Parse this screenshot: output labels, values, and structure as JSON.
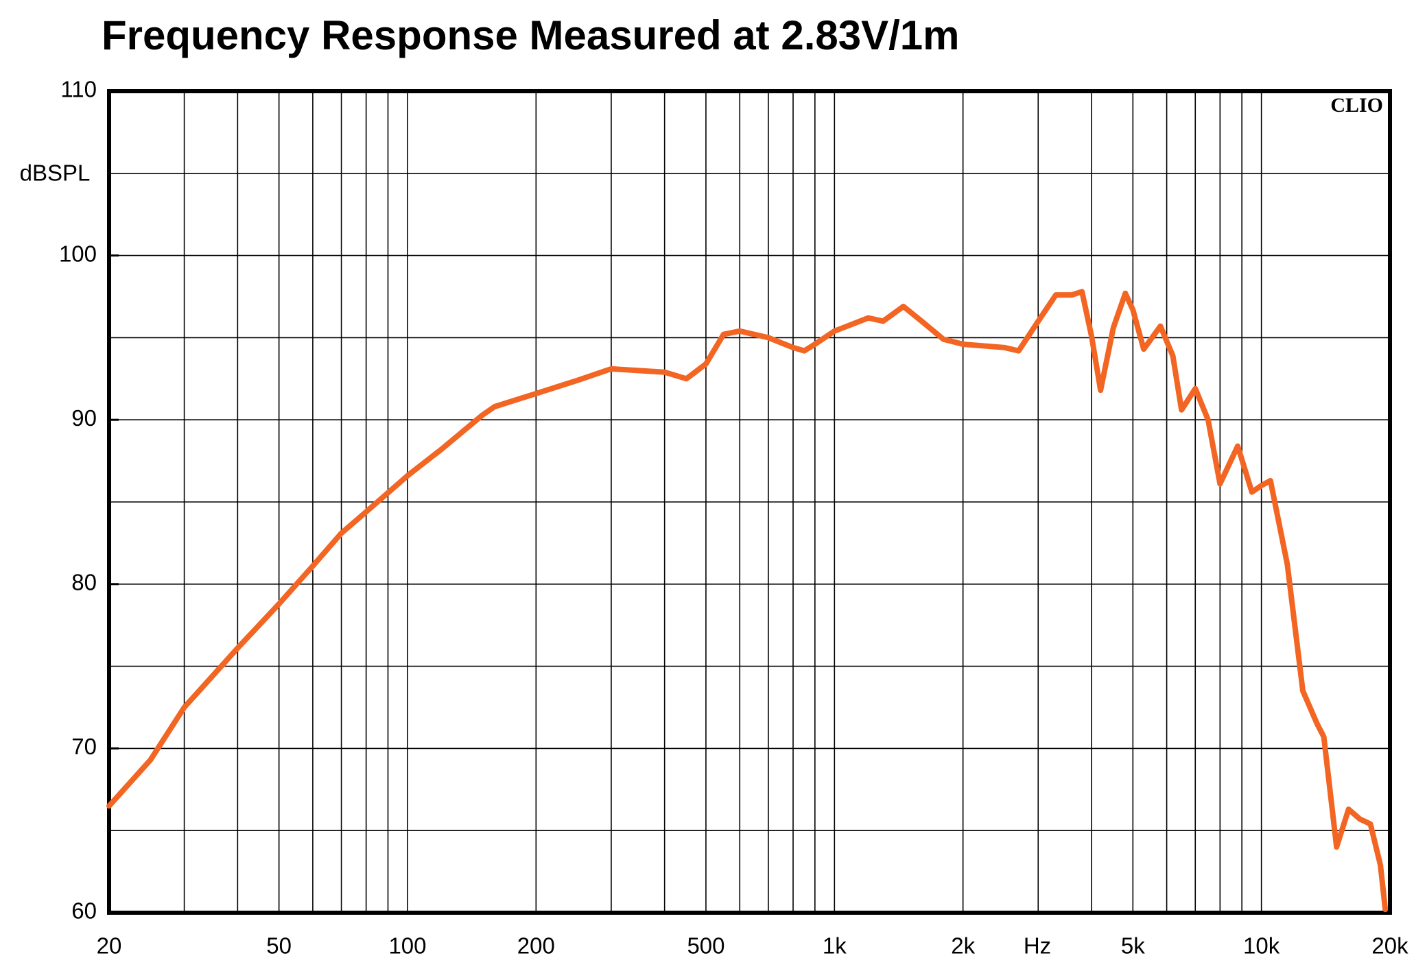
{
  "chart_data": {
    "type": "line",
    "title": "Frequency Response Measured at 2.83V/1m",
    "y_label": "dBSPL",
    "x_label": "Hz",
    "annotation": "CLIO",
    "xscale": "log",
    "xlim": [
      20,
      20000
    ],
    "ylim": [
      60,
      110
    ],
    "xticks": [
      20,
      50,
      100,
      200,
      500,
      {
        "value": 1000,
        "label": "1k"
      },
      {
        "value": 2000,
        "label": "2k"
      },
      {
        "value": 5000,
        "label": "5k"
      },
      {
        "value": 10000,
        "label": "10k"
      },
      {
        "value": 20000,
        "label": "20k"
      }
    ],
    "xminor": [
      30,
      40,
      60,
      70,
      80,
      90,
      300,
      400,
      600,
      700,
      800,
      900,
      3000,
      4000,
      6000,
      7000,
      8000,
      9000
    ],
    "yticks": [
      60,
      70,
      80,
      90,
      100,
      110
    ],
    "yminor": [
      65,
      75,
      85,
      95,
      105
    ],
    "grid": true,
    "color": "#f26522",
    "x": [
      20,
      25,
      30,
      40,
      50,
      60,
      70,
      80,
      100,
      120,
      150,
      160,
      200,
      250,
      300,
      400,
      450,
      500,
      550,
      600,
      700,
      800,
      850,
      900,
      1000,
      1200,
      1300,
      1450,
      1600,
      1800,
      2000,
      2500,
      2700,
      3000,
      3300,
      3600,
      3800,
      4000,
      4200,
      4500,
      4800,
      5000,
      5300,
      5800,
      6200,
      6500,
      7000,
      7500,
      8000,
      8800,
      9500,
      10000,
      10500,
      11500,
      12500,
      13500,
      14000,
      15000,
      16000,
      17000,
      18000,
      19000,
      19500
    ],
    "values": [
      66.5,
      69.3,
      72.5,
      76.1,
      78.8,
      81.1,
      83.1,
      84.4,
      86.6,
      88.2,
      90.3,
      90.8,
      91.6,
      92.4,
      93.1,
      92.9,
      92.5,
      93.4,
      95.2,
      95.4,
      95.0,
      94.4,
      94.2,
      94.6,
      95.4,
      96.2,
      96.0,
      96.9,
      96.0,
      94.9,
      94.6,
      94.4,
      94.2,
      96.0,
      97.6,
      97.6,
      97.8,
      95.1,
      91.8,
      95.6,
      97.7,
      96.7,
      94.3,
      95.7,
      93.9,
      90.6,
      91.9,
      90.0,
      86.1,
      88.4,
      85.6,
      86.0,
      86.3,
      81.2,
      73.5,
      71.5,
      70.7,
      64.0,
      66.3,
      65.7,
      65.4,
      62.9,
      60.2
    ]
  }
}
